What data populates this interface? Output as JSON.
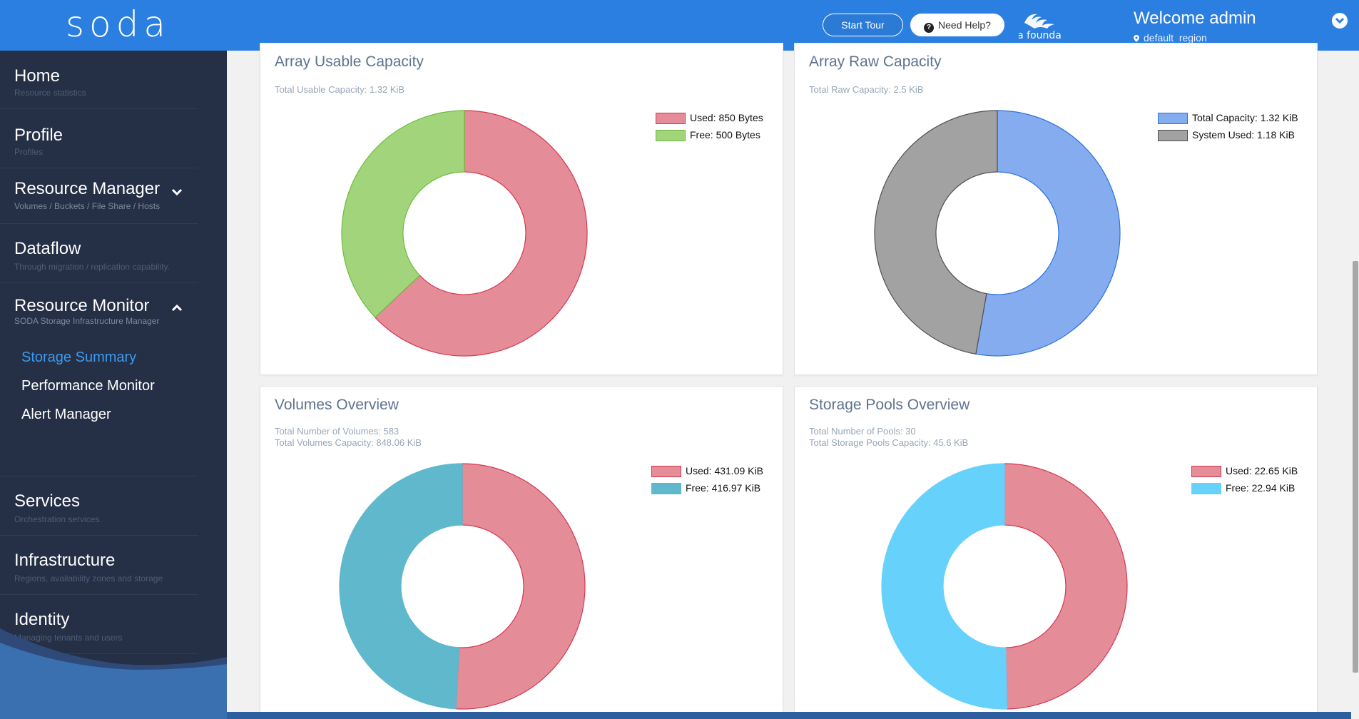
{
  "header": {
    "logo": "soda",
    "start_tour_label": "Start Tour",
    "need_help_label": "Need Help?",
    "foundation_logo_text": "soda foundation",
    "welcome": "Welcome admin",
    "region": "default_region"
  },
  "sidebar": {
    "items": [
      {
        "title": "Home",
        "sub": "Resource statistics"
      },
      {
        "title": "Profile",
        "sub": "Profiles"
      },
      {
        "title": "Resource Manager",
        "sub": "Volumes / Buckets / File Share / Hosts"
      },
      {
        "title": "Dataflow",
        "sub": "Through migration / replication capability."
      },
      {
        "title": "Resource Monitor",
        "sub": "SODA Storage Infrastructure Manager"
      },
      {
        "title": "Services",
        "sub": "Orchestration services."
      },
      {
        "title": "Infrastructure",
        "sub": "Regions, availability zones and storage"
      },
      {
        "title": "Identity",
        "sub": "Managing tenants and users"
      }
    ],
    "monitor_subitems": [
      "Storage Summary",
      "Performance Monitor",
      "Alert Manager"
    ]
  },
  "cards": [
    {
      "title": "Array Usable Capacity",
      "subs": [
        "Total Usable Capacity: 1.32 KiB"
      ],
      "legend": [
        "Used: 850 Bytes",
        "Free: 500 Bytes"
      ]
    },
    {
      "title": "Array Raw Capacity",
      "subs": [
        "Total Raw Capacity: 2.5 KiB"
      ],
      "legend": [
        "Total Capacity: 1.32 KiB",
        "System Used: 1.18 KiB"
      ]
    },
    {
      "title": "Volumes Overview",
      "subs": [
        "Total Number of Volumes: 583",
        "Total Volumes Capacity: 848.06 KiB"
      ],
      "legend": [
        "Used: 431.09 KiB",
        "Free: 416.97 KiB"
      ]
    },
    {
      "title": "Storage Pools Overview",
      "subs": [
        "Total Number of Pools: 30",
        "Total Storage Pools Capacity: 45.6 KiB"
      ],
      "legend": [
        "Used: 22.65 KiB",
        "Free: 22.94 KiB"
      ]
    }
  ],
  "chart_data": [
    {
      "type": "pie",
      "title": "Array Usable Capacity",
      "categories": [
        "Used",
        "Free"
      ],
      "values": [
        850,
        500
      ],
      "unit": "Bytes",
      "colors": [
        "#e58c99",
        "#a2d47c"
      ],
      "borders": [
        "#d6384e",
        "#6dbd3a"
      ]
    },
    {
      "type": "pie",
      "title": "Array Raw Capacity",
      "categories": [
        "Total Capacity",
        "System Used"
      ],
      "values": [
        1.32,
        1.18
      ],
      "unit": "KiB",
      "colors": [
        "#84acef",
        "#a2a2a2"
      ],
      "borders": [
        "#2b72dc",
        "#4f4f4f"
      ]
    },
    {
      "type": "pie",
      "title": "Volumes Overview",
      "categories": [
        "Used",
        "Free"
      ],
      "values": [
        431.09,
        416.97
      ],
      "unit": "KiB",
      "colors": [
        "#e58c99",
        "#5fb8cc"
      ],
      "borders": [
        "#d6384e",
        "#5fb8cc"
      ]
    },
    {
      "type": "pie",
      "title": "Storage Pools Overview",
      "categories": [
        "Used",
        "Free"
      ],
      "values": [
        22.65,
        22.94
      ],
      "unit": "KiB",
      "colors": [
        "#e58c99",
        "#66d1fb"
      ],
      "borders": [
        "#d6384e",
        "#66d1fb"
      ]
    }
  ]
}
